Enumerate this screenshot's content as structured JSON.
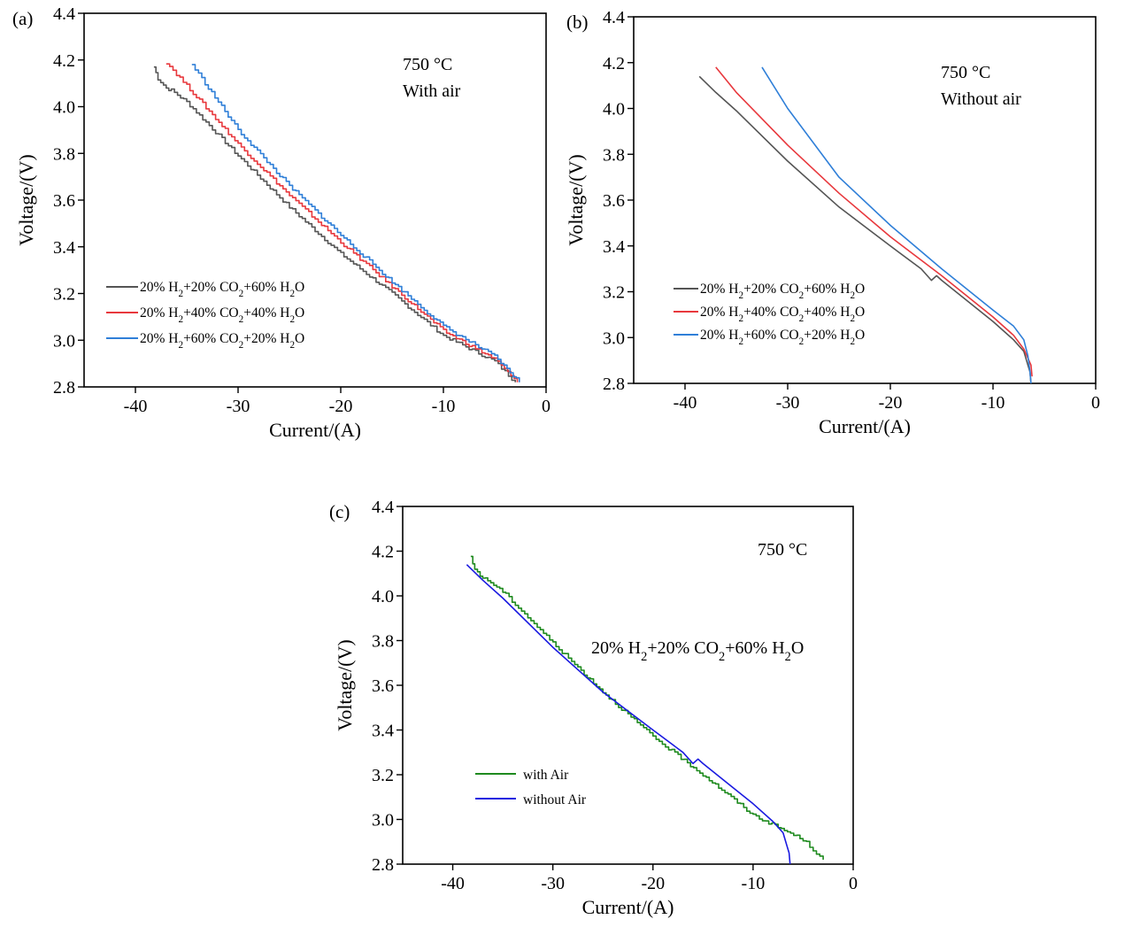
{
  "chart_data": [
    {
      "type": "line",
      "panel_label": "(a)",
      "annotation": [
        "750 °C",
        "With air"
      ],
      "xlabel": "Current/(A)",
      "ylabel": "Voltage/(V)",
      "xlim": [
        -45,
        0
      ],
      "ylim": [
        2.8,
        4.4
      ],
      "xticks": [
        -40,
        -30,
        -20,
        -10,
        0
      ],
      "yticks": [
        2.8,
        3.0,
        3.2,
        3.4,
        3.6,
        3.8,
        4.0,
        4.2,
        4.4
      ],
      "legend_position": "bottom-left",
      "series": [
        {
          "name": "20% H2+20% CO2+60% H2O",
          "legend": {
            "pre1": "20% H",
            "s1": "2",
            "mid": "+20% CO",
            "s2": "2",
            "post": "+60% H",
            "s3": "2",
            "end": "O"
          },
          "color": "#555555",
          "stepped": true,
          "x": [
            -38.2,
            -37.8,
            -37.0,
            -36.5,
            -35.0,
            -30.0,
            -25.0,
            -20.0,
            -15.0,
            -10.0,
            -5.0,
            -3.0
          ],
          "y": [
            4.17,
            4.12,
            4.08,
            4.07,
            4.02,
            3.79,
            3.57,
            3.37,
            3.2,
            3.02,
            2.91,
            2.82
          ]
        },
        {
          "name": "20% H2+40% CO2+40% H2O",
          "legend": {
            "pre1": "20% H",
            "s1": "2",
            "mid": "+40% CO",
            "s2": "2",
            "post": "+40% H",
            "s3": "2",
            "end": "O"
          },
          "color": "#e8383d",
          "stepped": true,
          "x": [
            -37.0,
            -35.0,
            -30.0,
            -25.0,
            -20.0,
            -15.0,
            -10.0,
            -5.0,
            -2.8
          ],
          "y": [
            4.19,
            4.09,
            3.84,
            3.62,
            3.42,
            3.23,
            3.04,
            2.92,
            2.82
          ]
        },
        {
          "name": "20% H2+60% CO2+20% H2O",
          "legend": {
            "pre1": "20% H",
            "s1": "2",
            "mid": "+60% CO",
            "s2": "2",
            "post": "+20% H",
            "s3": "2",
            "end": "O"
          },
          "color": "#2f7fd8",
          "stepped": true,
          "x": [
            -34.5,
            -30.0,
            -25.0,
            -20.0,
            -15.0,
            -10.0,
            -5.0,
            -2.6
          ],
          "y": [
            4.18,
            3.9,
            3.66,
            3.45,
            3.25,
            3.06,
            2.93,
            2.82
          ]
        }
      ]
    },
    {
      "type": "line",
      "panel_label": "(b)",
      "annotation": [
        "750 °C",
        "Without air"
      ],
      "xlabel": "Current/(A)",
      "ylabel": "Voltage/(V)",
      "xlim": [
        -45,
        0
      ],
      "ylim": [
        2.8,
        4.4
      ],
      "xticks": [
        -40,
        -30,
        -20,
        -10,
        0
      ],
      "yticks": [
        2.8,
        3.0,
        3.2,
        3.4,
        3.6,
        3.8,
        4.0,
        4.2,
        4.4
      ],
      "legend_position": "bottom-left",
      "series": [
        {
          "name": "20% H2+20% CO2+60% H2O",
          "legend": {
            "pre1": "20% H",
            "s1": "2",
            "mid": "+20% CO",
            "s2": "2",
            "post": "+60% H",
            "s3": "2",
            "end": "O"
          },
          "color": "#555555",
          "stepped": false,
          "x": [
            -38.6,
            -37.0,
            -35.0,
            -30.0,
            -25.0,
            -20.0,
            -17.0,
            -16.0,
            -15.5,
            -15.0,
            -10.0,
            -8.0,
            -7.0,
            -6.6,
            -6.4,
            -6.3
          ],
          "y": [
            4.14,
            4.07,
            3.99,
            3.77,
            3.57,
            3.4,
            3.3,
            3.25,
            3.27,
            3.25,
            3.07,
            2.99,
            2.94,
            2.88,
            2.85,
            2.8
          ]
        },
        {
          "name": "20% H2+40% CO2+40% H2O",
          "legend": {
            "pre1": "20% H",
            "s1": "2",
            "mid": "+40% CO",
            "s2": "2",
            "post": "+40% H",
            "s3": "2",
            "end": "O"
          },
          "color": "#e8383d",
          "stepped": false,
          "x": [
            -37.0,
            -35.0,
            -30.0,
            -25.0,
            -20.0,
            -15.0,
            -10.0,
            -8.0,
            -7.0,
            -6.3,
            -6.2
          ],
          "y": [
            4.18,
            4.07,
            3.84,
            3.63,
            3.44,
            3.27,
            3.09,
            3.01,
            2.95,
            2.88,
            2.83
          ]
        },
        {
          "name": "20% H2+60% CO2+20% H2O",
          "legend": {
            "pre1": "20% H",
            "s1": "2",
            "mid": "+60% CO",
            "s2": "2",
            "post": "+20% H",
            "s3": "2",
            "end": "O"
          },
          "color": "#2f7fd8",
          "stepped": false,
          "x": [
            -32.5,
            -30.0,
            -25.0,
            -20.0,
            -15.0,
            -10.0,
            -8.0,
            -7.0,
            -6.6,
            -6.4,
            -6.3
          ],
          "y": [
            4.18,
            4.0,
            3.7,
            3.49,
            3.3,
            3.12,
            3.05,
            2.99,
            2.92,
            2.85,
            2.8
          ]
        }
      ]
    },
    {
      "type": "line",
      "panel_label": "(c)",
      "annotation": [
        "750 °C"
      ],
      "composition_label": {
        "pre1": "20% H",
        "s1": "2",
        "mid": "+20% CO",
        "s2": "2",
        "post": "+60% H",
        "s3": "2",
        "end": "O"
      },
      "xlabel": "Current/(A)",
      "ylabel": "Voltage/(V)",
      "xlim": [
        -45,
        0
      ],
      "ylim": [
        2.8,
        4.4
      ],
      "xticks": [
        -40,
        -30,
        -20,
        -10,
        0
      ],
      "yticks": [
        2.8,
        3.0,
        3.2,
        3.4,
        3.6,
        3.8,
        4.0,
        4.2,
        4.4
      ],
      "legend_position": "bottom-left",
      "series": [
        {
          "name": "with Air",
          "color": "#1e8a1e",
          "stepped": true,
          "x": [
            -38.2,
            -37.8,
            -37.0,
            -36.5,
            -35.0,
            -30.0,
            -25.0,
            -20.0,
            -15.0,
            -10.0,
            -5.0,
            -3.0
          ],
          "y": [
            4.17,
            4.12,
            4.08,
            4.07,
            4.02,
            3.79,
            3.57,
            3.37,
            3.2,
            3.02,
            2.91,
            2.82
          ]
        },
        {
          "name": "without Air",
          "color": "#1a1ae0",
          "stepped": false,
          "x": [
            -38.6,
            -37.0,
            -35.0,
            -30.0,
            -25.0,
            -20.0,
            -17.0,
            -16.0,
            -15.5,
            -15.0,
            -10.0,
            -8.0,
            -7.0,
            -6.6,
            -6.4,
            -6.3
          ],
          "y": [
            4.14,
            4.07,
            3.99,
            3.77,
            3.57,
            3.4,
            3.3,
            3.25,
            3.27,
            3.25,
            3.07,
            2.99,
            2.94,
            2.88,
            2.85,
            2.8
          ]
        }
      ]
    }
  ]
}
